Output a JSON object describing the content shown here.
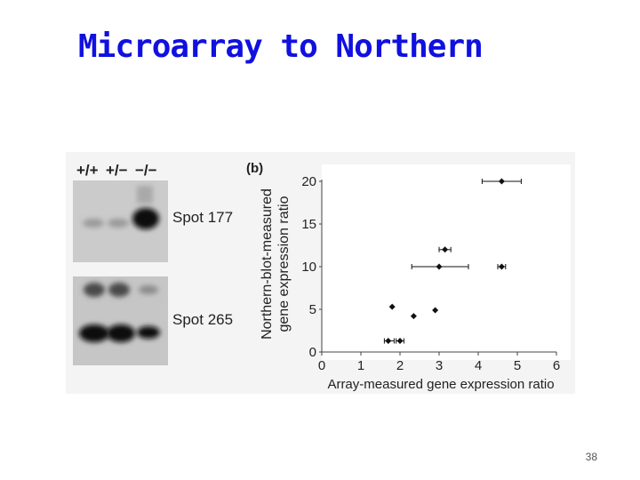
{
  "slide": {
    "title": "Microarray to Northern",
    "page_number": "38"
  },
  "colors": {
    "title": "#1010e0",
    "figure_background": "#f4f4f4",
    "marker": "#111111"
  },
  "blot": {
    "genotypes": [
      "+/+",
      "+/−",
      "−/−"
    ],
    "spots": [
      {
        "label": "Spot 177"
      },
      {
        "label": "Spot 265"
      }
    ]
  },
  "panel_label": "(b)",
  "chart_data": {
    "type": "scatter",
    "xlabel": "Array-measured gene expression ratio",
    "ylabel": [
      "Northern-blot-measured",
      "gene expression ratio"
    ],
    "xlim": [
      0,
      6
    ],
    "ylim": [
      0,
      20
    ],
    "xticks": [
      0,
      1,
      2,
      3,
      4,
      5,
      6
    ],
    "yticks": [
      0,
      5,
      10,
      15,
      20
    ],
    "grid": false,
    "points": [
      {
        "x": 4.6,
        "y": 20,
        "xerr": [
          4.1,
          5.1
        ]
      },
      {
        "x": 3.15,
        "y": 12,
        "xerr": [
          3.0,
          3.3
        ]
      },
      {
        "x": 3.0,
        "y": 10,
        "xerr": [
          2.3,
          3.75
        ]
      },
      {
        "x": 4.6,
        "y": 10,
        "xerr": [
          4.5,
          4.7
        ]
      },
      {
        "x": 1.8,
        "y": 5.3
      },
      {
        "x": 2.35,
        "y": 4.2
      },
      {
        "x": 2.9,
        "y": 4.9
      },
      {
        "x": 1.7,
        "y": 1.3,
        "xerr": [
          1.6,
          1.85
        ]
      },
      {
        "x": 2.0,
        "y": 1.3,
        "xerr": [
          1.9,
          2.1
        ]
      }
    ]
  }
}
